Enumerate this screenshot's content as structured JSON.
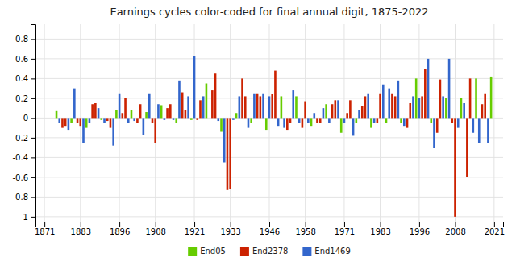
{
  "chart_data": {
    "type": "bar",
    "title": "Earnings cycles color-coded for final annual digit, 1875-2022",
    "x": [
      1875,
      1876,
      1877,
      1878,
      1879,
      1880,
      1881,
      1882,
      1883,
      1884,
      1885,
      1886,
      1887,
      1888,
      1889,
      1890,
      1891,
      1892,
      1893,
      1894,
      1895,
      1896,
      1897,
      1898,
      1899,
      1900,
      1901,
      1902,
      1903,
      1904,
      1905,
      1906,
      1907,
      1908,
      1909,
      1910,
      1911,
      1912,
      1913,
      1914,
      1915,
      1916,
      1917,
      1918,
      1919,
      1920,
      1921,
      1922,
      1923,
      1924,
      1925,
      1926,
      1927,
      1928,
      1929,
      1930,
      1931,
      1932,
      1933,
      1934,
      1935,
      1936,
      1937,
      1938,
      1939,
      1940,
      1941,
      1942,
      1943,
      1944,
      1945,
      1946,
      1947,
      1948,
      1949,
      1950,
      1951,
      1952,
      1953,
      1954,
      1955,
      1956,
      1957,
      1958,
      1959,
      1960,
      1961,
      1962,
      1963,
      1964,
      1965,
      1966,
      1967,
      1968,
      1969,
      1970,
      1971,
      1972,
      1973,
      1974,
      1975,
      1976,
      1977,
      1978,
      1979,
      1980,
      1981,
      1982,
      1983,
      1984,
      1985,
      1986,
      1987,
      1988,
      1989,
      1990,
      1991,
      1992,
      1993,
      1994,
      1995,
      1996,
      1997,
      1998,
      1999,
      2000,
      2001,
      2002,
      2003,
      2004,
      2005,
      2006,
      2007,
      2008,
      2009,
      2010,
      2011,
      2012,
      2013,
      2014,
      2015,
      2016,
      2017,
      2018,
      2019,
      2020
    ],
    "series": [
      {
        "name": "End05",
        "color": "#66cc00",
        "values": [
          0.07,
          null,
          null,
          null,
          null,
          -0.05,
          null,
          null,
          null,
          null,
          -0.1,
          null,
          null,
          null,
          null,
          -0.02,
          null,
          null,
          null,
          null,
          0.08,
          null,
          null,
          null,
          null,
          0.08,
          null,
          null,
          null,
          null,
          0.06,
          null,
          null,
          null,
          null,
          0.13,
          null,
          null,
          null,
          null,
          -0.05,
          null,
          null,
          null,
          null,
          -0.02,
          null,
          null,
          null,
          null,
          0.35,
          null,
          null,
          null,
          null,
          -0.14,
          null,
          null,
          null,
          null,
          0.05,
          null,
          null,
          null,
          null,
          -0.05,
          null,
          null,
          null,
          null,
          -0.12,
          null,
          null,
          null,
          null,
          0.22,
          null,
          null,
          null,
          null,
          0.22,
          null,
          null,
          null,
          null,
          -0.08,
          null,
          null,
          null,
          null,
          0.14,
          null,
          null,
          null,
          null,
          -0.15,
          null,
          null,
          null,
          null,
          -0.05,
          null,
          null,
          null,
          null,
          -0.1,
          null,
          null,
          null,
          null,
          -0.05,
          null,
          null,
          null,
          null,
          -0.05,
          null,
          null,
          null,
          null,
          0.4,
          null,
          null,
          null,
          null,
          -0.05,
          null,
          null,
          null,
          null,
          0.2,
          null,
          null,
          null,
          null,
          0.2,
          null,
          null,
          null,
          null,
          0.4,
          null,
          null,
          null,
          null,
          0.42
        ]
      },
      {
        "name": "End2378",
        "color": "#cc2200",
        "values": [
          null,
          null,
          -0.1,
          -0.08,
          null,
          null,
          null,
          -0.05,
          -0.08,
          null,
          null,
          null,
          0.14,
          0.15,
          null,
          null,
          null,
          -0.03,
          -0.1,
          null,
          null,
          null,
          0.05,
          0.2,
          null,
          null,
          null,
          -0.05,
          0.14,
          null,
          null,
          null,
          -0.05,
          -0.25,
          null,
          null,
          null,
          0.1,
          0.14,
          null,
          null,
          null,
          0.26,
          0.08,
          null,
          null,
          null,
          -0.02,
          0.18,
          null,
          null,
          null,
          0.28,
          0.45,
          null,
          null,
          null,
          -0.73,
          -0.72,
          null,
          null,
          null,
          0.4,
          0.22,
          null,
          null,
          null,
          0.25,
          0.22,
          null,
          null,
          null,
          0.24,
          0.48,
          null,
          null,
          null,
          -0.12,
          -0.05,
          null,
          null,
          null,
          -0.1,
          0.17,
          null,
          null,
          null,
          -0.05,
          -0.05,
          null,
          null,
          null,
          0.14,
          0.18,
          null,
          null,
          null,
          0.05,
          0.18,
          null,
          null,
          null,
          0.12,
          0.22,
          null,
          null,
          null,
          -0.05,
          0.25,
          null,
          null,
          null,
          0.25,
          0.22,
          null,
          null,
          null,
          -0.1,
          0.15,
          null,
          null,
          null,
          0.22,
          0.5,
          null,
          null,
          null,
          -0.15,
          0.39,
          null,
          null,
          null,
          -0.05,
          -1.0,
          null,
          null,
          null,
          -0.6,
          0.4,
          null,
          null,
          null,
          0.14,
          0.25,
          null,
          null
        ]
      },
      {
        "name": "End1469",
        "color": "#3366cc",
        "values": [
          null,
          -0.05,
          null,
          null,
          -0.12,
          null,
          0.3,
          null,
          null,
          -0.25,
          null,
          -0.05,
          null,
          null,
          0.1,
          null,
          -0.05,
          null,
          null,
          -0.28,
          null,
          0.25,
          null,
          null,
          -0.05,
          null,
          -0.03,
          null,
          null,
          -0.17,
          null,
          0.25,
          null,
          null,
          0.14,
          null,
          -0.02,
          null,
          null,
          -0.02,
          null,
          0.38,
          null,
          null,
          0.22,
          null,
          0.63,
          null,
          null,
          0.22,
          null,
          -0.0,
          null,
          null,
          -0.03,
          null,
          -0.45,
          null,
          null,
          -0.02,
          null,
          0.22,
          null,
          null,
          -0.1,
          null,
          0.25,
          null,
          null,
          0.25,
          null,
          0.22,
          null,
          null,
          -0.08,
          null,
          -0.1,
          null,
          null,
          0.28,
          null,
          -0.05,
          null,
          null,
          -0.05,
          null,
          0.05,
          null,
          null,
          0.1,
          null,
          -0.05,
          null,
          null,
          0.18,
          null,
          -0.05,
          null,
          null,
          -0.18,
          null,
          0.08,
          null,
          null,
          0.25,
          null,
          -0.05,
          null,
          null,
          0.34,
          null,
          0.3,
          null,
          null,
          0.38,
          null,
          -0.08,
          null,
          null,
          0.22,
          null,
          0.2,
          null,
          null,
          0.6,
          null,
          -0.3,
          null,
          null,
          0.22,
          null,
          0.6,
          null,
          null,
          -0.1,
          null,
          0.15,
          null,
          null,
          -0.15,
          null,
          -0.25,
          null,
          null,
          -0.25,
          null
        ]
      }
    ],
    "xlim": [
      1868,
      2024
    ],
    "xticks": [
      1871,
      1883,
      1896,
      1908,
      1921,
      1933,
      1946,
      1958,
      1971,
      1983,
      1996,
      2008,
      2021
    ],
    "ylim": [
      -1.05,
      0.95
    ],
    "yticks": [
      -1,
      -0.8,
      -0.6,
      -0.4,
      -0.2,
      0,
      0.2,
      0.4,
      0.6,
      0.8
    ],
    "grid": true,
    "legend": "bottom"
  }
}
